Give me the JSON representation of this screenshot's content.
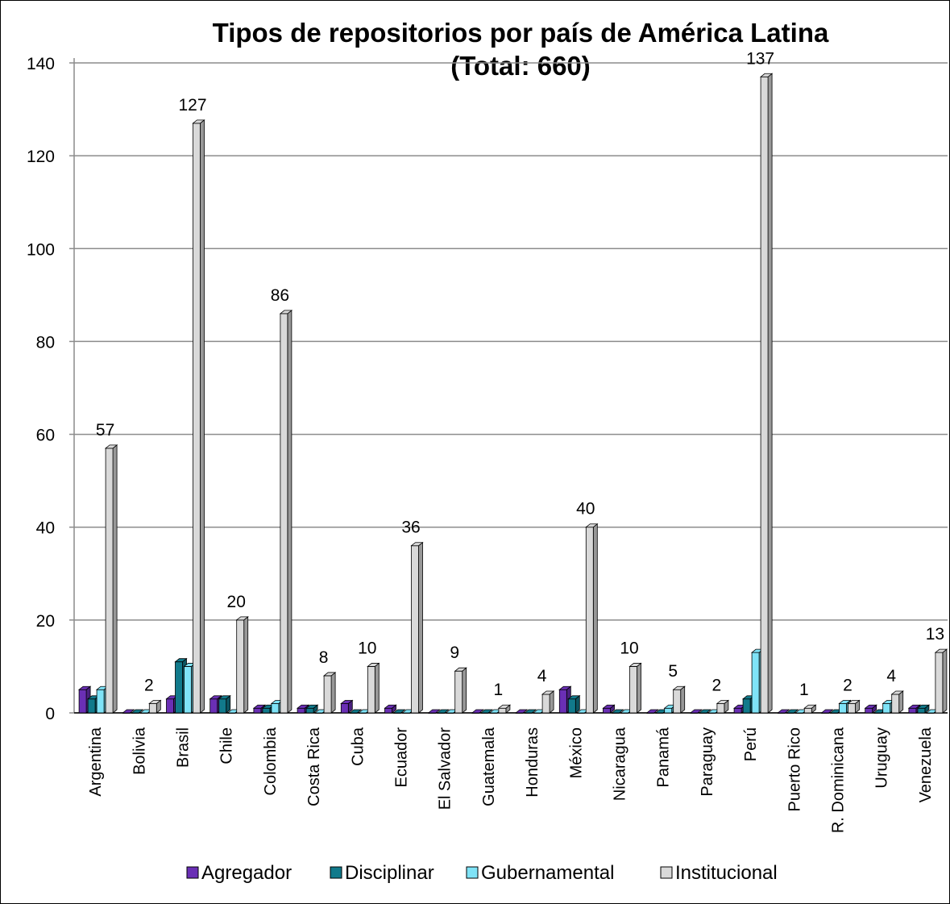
{
  "chart_data": {
    "type": "bar",
    "title": "Tipos de repositorios por país de América Latina",
    "subtitle": "(Total: 660)",
    "categories": [
      "Argentina",
      "Bolivia",
      "Brasil",
      "Chile",
      "Colombia",
      "Costa Rica",
      "Cuba",
      "Ecuador",
      "El Salvador",
      "Guatemala",
      "Honduras",
      "México",
      "Nicaragua",
      "Panamá",
      "Paraguay",
      "Perú",
      "Puerto Rico",
      "R. Dominicana",
      "Uruguay",
      "Venezuela"
    ],
    "series": [
      {
        "name": "Agregador",
        "color": "#6a2fb5",
        "values": [
          5,
          0,
          3,
          3,
          1,
          1,
          2,
          1,
          0,
          0,
          0,
          5,
          1,
          0,
          0,
          1,
          0,
          0,
          1,
          1
        ]
      },
      {
        "name": "Disciplinar",
        "color": "#117a8b",
        "values": [
          3,
          0,
          11,
          3,
          1,
          1,
          0,
          0,
          0,
          0,
          0,
          3,
          0,
          0,
          0,
          3,
          0,
          0,
          0,
          1
        ]
      },
      {
        "name": "Gubernamental",
        "color": "#7fe3f7",
        "values": [
          5,
          0,
          10,
          0,
          2,
          0,
          0,
          0,
          0,
          0,
          0,
          0,
          0,
          1,
          0,
          13,
          0,
          2,
          2,
          0
        ]
      },
      {
        "name": "Institucional",
        "color": "#d9d9d9",
        "values": [
          57,
          2,
          127,
          20,
          86,
          8,
          10,
          36,
          9,
          1,
          4,
          40,
          10,
          5,
          2,
          137,
          1,
          2,
          4,
          13
        ]
      }
    ],
    "data_labels": [
      "57",
      "2",
      "127",
      "20",
      "86",
      "8",
      "10",
      "36",
      "9",
      "1",
      "4",
      "40",
      "10",
      "5",
      "2",
      "137",
      "1",
      "2",
      "4",
      "13"
    ],
    "y_ticks": [
      "0",
      "20",
      "40",
      "60",
      "80",
      "100",
      "120",
      "140"
    ],
    "ylim": [
      0,
      140
    ],
    "grid": true,
    "legend_position": "bottom"
  }
}
